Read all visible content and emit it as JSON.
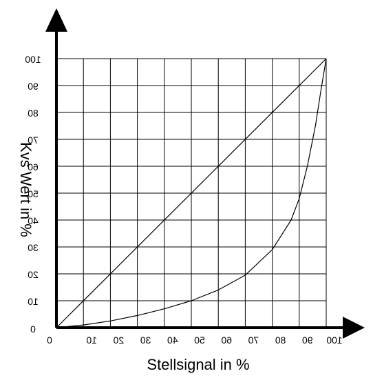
{
  "chart_data": {
    "type": "line",
    "title": "",
    "xlabel": "Stellsignal in %",
    "ylabel": "Kvs Wert in %",
    "xlim": [
      0,
      100
    ],
    "ylim": [
      0,
      100
    ],
    "grid": true,
    "x_ticks": [
      "0",
      "10",
      "20",
      "30",
      "40",
      "50",
      "60",
      "70",
      "80",
      "90",
      "100"
    ],
    "y_ticks": [
      "0",
      "10",
      "20",
      "30",
      "40",
      "50",
      "60",
      "70",
      "80",
      "90",
      "100"
    ],
    "series": [
      {
        "points": [
          [
            0,
            0
          ],
          [
            100,
            100
          ]
        ]
      },
      {
        "points": [
          [
            0,
            0
          ],
          [
            10,
            1
          ],
          [
            20,
            2.5
          ],
          [
            30,
            4.5
          ],
          [
            40,
            7
          ],
          [
            50,
            10
          ],
          [
            60,
            14
          ],
          [
            70,
            19.5
          ],
          [
            80,
            29
          ],
          [
            87,
            40
          ],
          [
            90,
            48
          ],
          [
            93,
            60
          ],
          [
            96,
            75
          ],
          [
            98,
            88
          ],
          [
            100,
            100
          ]
        ]
      }
    ]
  }
}
